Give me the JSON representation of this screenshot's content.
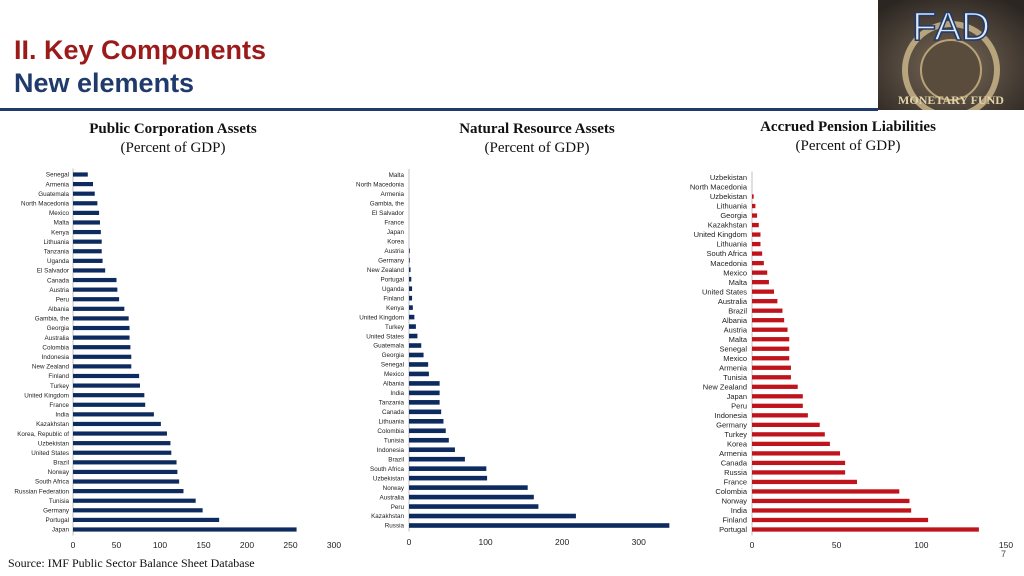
{
  "header": {
    "title_line1": "II. Key Components",
    "title_line2": "New elements",
    "logo_text": "FAD",
    "logo_ring_text": "MONETARY FUND"
  },
  "colors": {
    "title_red": "#9b1b1b",
    "title_blue": "#1f3a6b",
    "bar_navy": "#0d2b5e",
    "bar_red": "#c0141c"
  },
  "footer": {
    "source": "Source: IMF Public Sector Balance Sheet Database",
    "page": "7"
  },
  "chart_data": [
    {
      "type": "bar",
      "orientation": "horizontal",
      "title": "Public Corporation Assets",
      "subtitle": "(Percent of GDP)",
      "color": "#0d2b5e",
      "xlim": [
        0,
        300
      ],
      "xticks": [
        "0",
        "50",
        "100",
        "150",
        "200",
        "250",
        "300"
      ],
      "categories": [
        "Senegal",
        "Armenia",
        "Guatemala",
        "North Macedonia",
        "Mexico",
        "Malta",
        "Kenya",
        "Lithuania",
        "Tanzania",
        "Uganda",
        "El Salvador",
        "Canada",
        "Austria",
        "Peru",
        "Albania",
        "Gambia, the",
        "Georgia",
        "Australia",
        "Colombia",
        "Indonesia",
        "New Zealand",
        "Finland",
        "Turkey",
        "United Kingdom",
        "France",
        "India",
        "Kazakhstan",
        "Korea, Republic of",
        "Uzbekistan",
        "United States",
        "Brazil",
        "Norway",
        "South Africa",
        "Russian Federation",
        "Tunisia",
        "Germany",
        "Portugal",
        "Japan"
      ],
      "values": [
        17,
        23,
        25,
        28,
        30,
        31,
        32,
        33,
        33,
        34,
        37,
        50,
        51,
        53,
        59,
        64,
        65,
        65,
        66,
        67,
        67,
        76,
        77,
        82,
        83,
        93,
        101,
        108,
        112,
        113,
        119,
        120,
        122,
        127,
        141,
        149,
        168,
        257
      ]
    },
    {
      "type": "bar",
      "orientation": "horizontal",
      "title": "Natural Resource Assets",
      "subtitle": "(Percent of GDP)",
      "color": "#0d2b5e",
      "xlim": [
        0,
        350
      ],
      "xticks": [
        "0",
        "100",
        "200",
        "300"
      ],
      "categories": [
        "Malta",
        "North Macedonia",
        "Armenia",
        "Gambia, the",
        "El Salvador",
        "France",
        "Japan",
        "Korea",
        "Austria",
        "Germany",
        "New Zealand",
        "Portugal",
        "Uganda",
        "Finland",
        "Kenya",
        "United Kingdom",
        "Turkey",
        "United States",
        "Guatemala",
        "Georgia",
        "Senegal",
        "Mexico",
        "Albania",
        "India",
        "Tanzania",
        "Canada",
        "Lithuania",
        "Colombia",
        "Tunisia",
        "Indonesia",
        "Brazil",
        "South Africa",
        "Uzbekistan",
        "Norway",
        "Australia",
        "Peru",
        "Kazakhstan",
        "Russia"
      ],
      "values": [
        0,
        0,
        0,
        0,
        0,
        0,
        0,
        0,
        1,
        1,
        2,
        3,
        4,
        4,
        5,
        7,
        9,
        11,
        16,
        19,
        25,
        26,
        40,
        40,
        40,
        42,
        45,
        48,
        52,
        60,
        73,
        101,
        102,
        155,
        163,
        169,
        218,
        340
      ]
    },
    {
      "type": "bar",
      "orientation": "horizontal",
      "title": "Accrued Pension Liabilities",
      "subtitle": "(Percent of GDP)",
      "color": "#c0141c",
      "xlim": [
        0,
        150
      ],
      "xticks": [
        "0",
        "50",
        "100",
        "150"
      ],
      "categories": [
        "Uzbekistan",
        "North Macedonia",
        "Uzbekistan",
        "Lithuania",
        "Georgia",
        "Kazakhstan",
        "United Kingdom",
        "Lithuania",
        "South Africa",
        "Macedonia",
        "Mexico",
        "Malta",
        "United States",
        "Australia",
        "Brazil",
        "Albania",
        "Austria",
        "Malta",
        "Senegal",
        "Mexico",
        "Armenia",
        "Tunisia",
        "New Zealand",
        "Japan",
        "Peru",
        "Indonesia",
        "Germany",
        "Turkey",
        "Korea",
        "Armenia",
        "Canada",
        "Russia",
        "France",
        "Colombia",
        "Norway",
        "India",
        "Finland",
        "Portugal"
      ],
      "values": [
        0,
        0,
        1,
        2,
        3,
        4,
        5,
        5,
        6,
        7,
        9,
        10,
        13,
        15,
        18,
        19,
        21,
        22,
        22,
        22,
        23,
        23,
        27,
        30,
        30,
        33,
        40,
        43,
        46,
        52,
        55,
        55,
        62,
        87,
        93,
        94,
        104,
        134
      ]
    }
  ]
}
